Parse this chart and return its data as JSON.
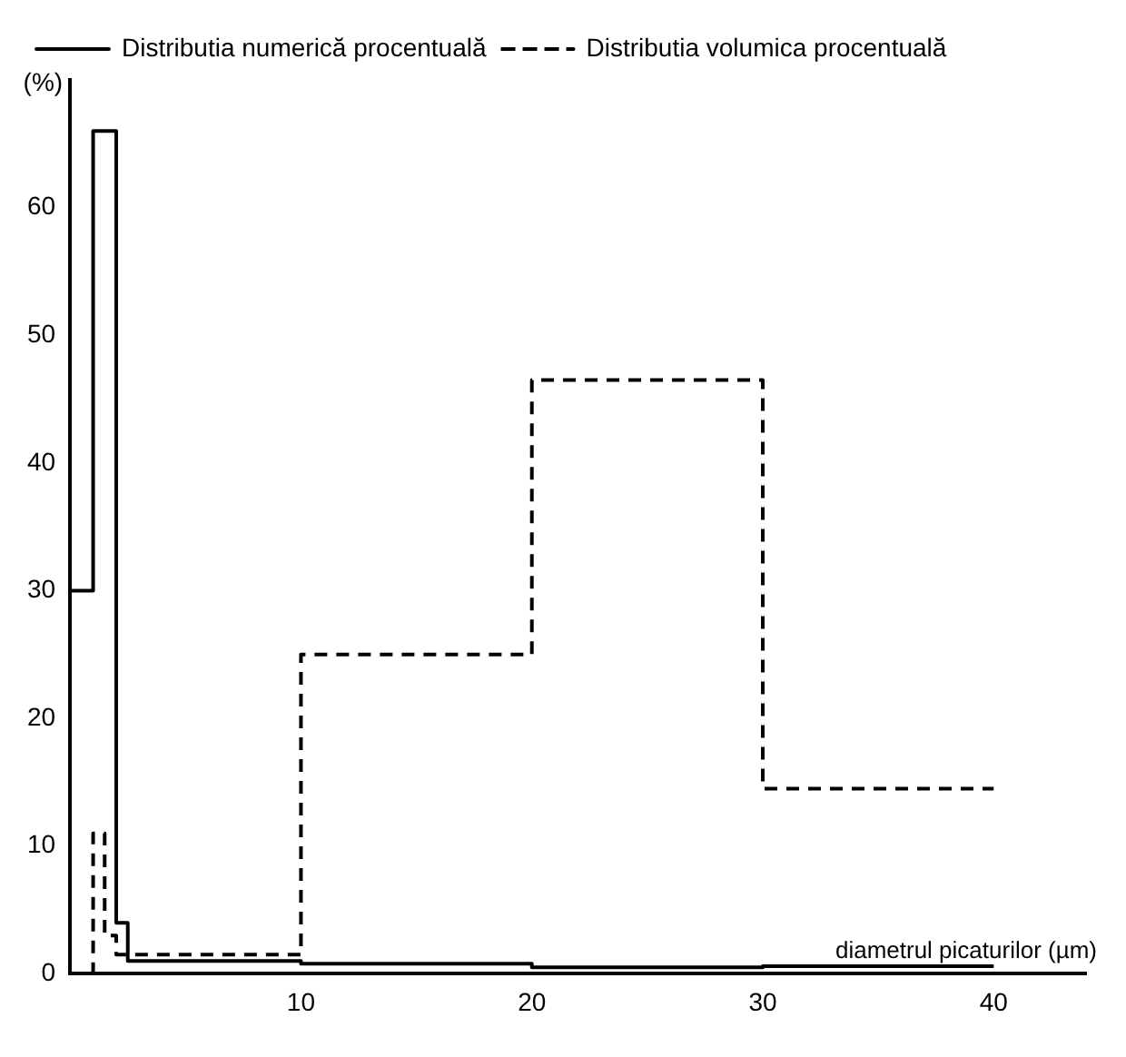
{
  "chart_data": {
    "type": "step",
    "xlabel": "diametrul picaturilor (µm)",
    "ylabel": "(%)",
    "xlim": [
      0,
      44
    ],
    "xticks": [
      10,
      20,
      30,
      40
    ],
    "ylim": [
      0,
      70
    ],
    "yticks": [
      0,
      10,
      20,
      30,
      40,
      50,
      60
    ],
    "grid": false,
    "legend": "top",
    "marker": "none",
    "series": [
      {
        "name": "Distributia numerică procentuală",
        "color": "#000000",
        "line_style": "solid",
        "x": [
          0,
          1,
          2,
          2.5,
          10,
          20,
          30,
          40
        ],
        "values": [
          30,
          66,
          4,
          1,
          0.8,
          0.5,
          0.6,
          0.6
        ]
      },
      {
        "name": "Distributia volumica procentuală",
        "color": "#000000",
        "line_style": "dashed",
        "x": [
          0,
          1,
          1.5,
          2,
          10,
          20,
          30,
          40
        ],
        "values": [
          0,
          11,
          3,
          1.5,
          25,
          46.5,
          14.5,
          14.5
        ]
      }
    ]
  }
}
